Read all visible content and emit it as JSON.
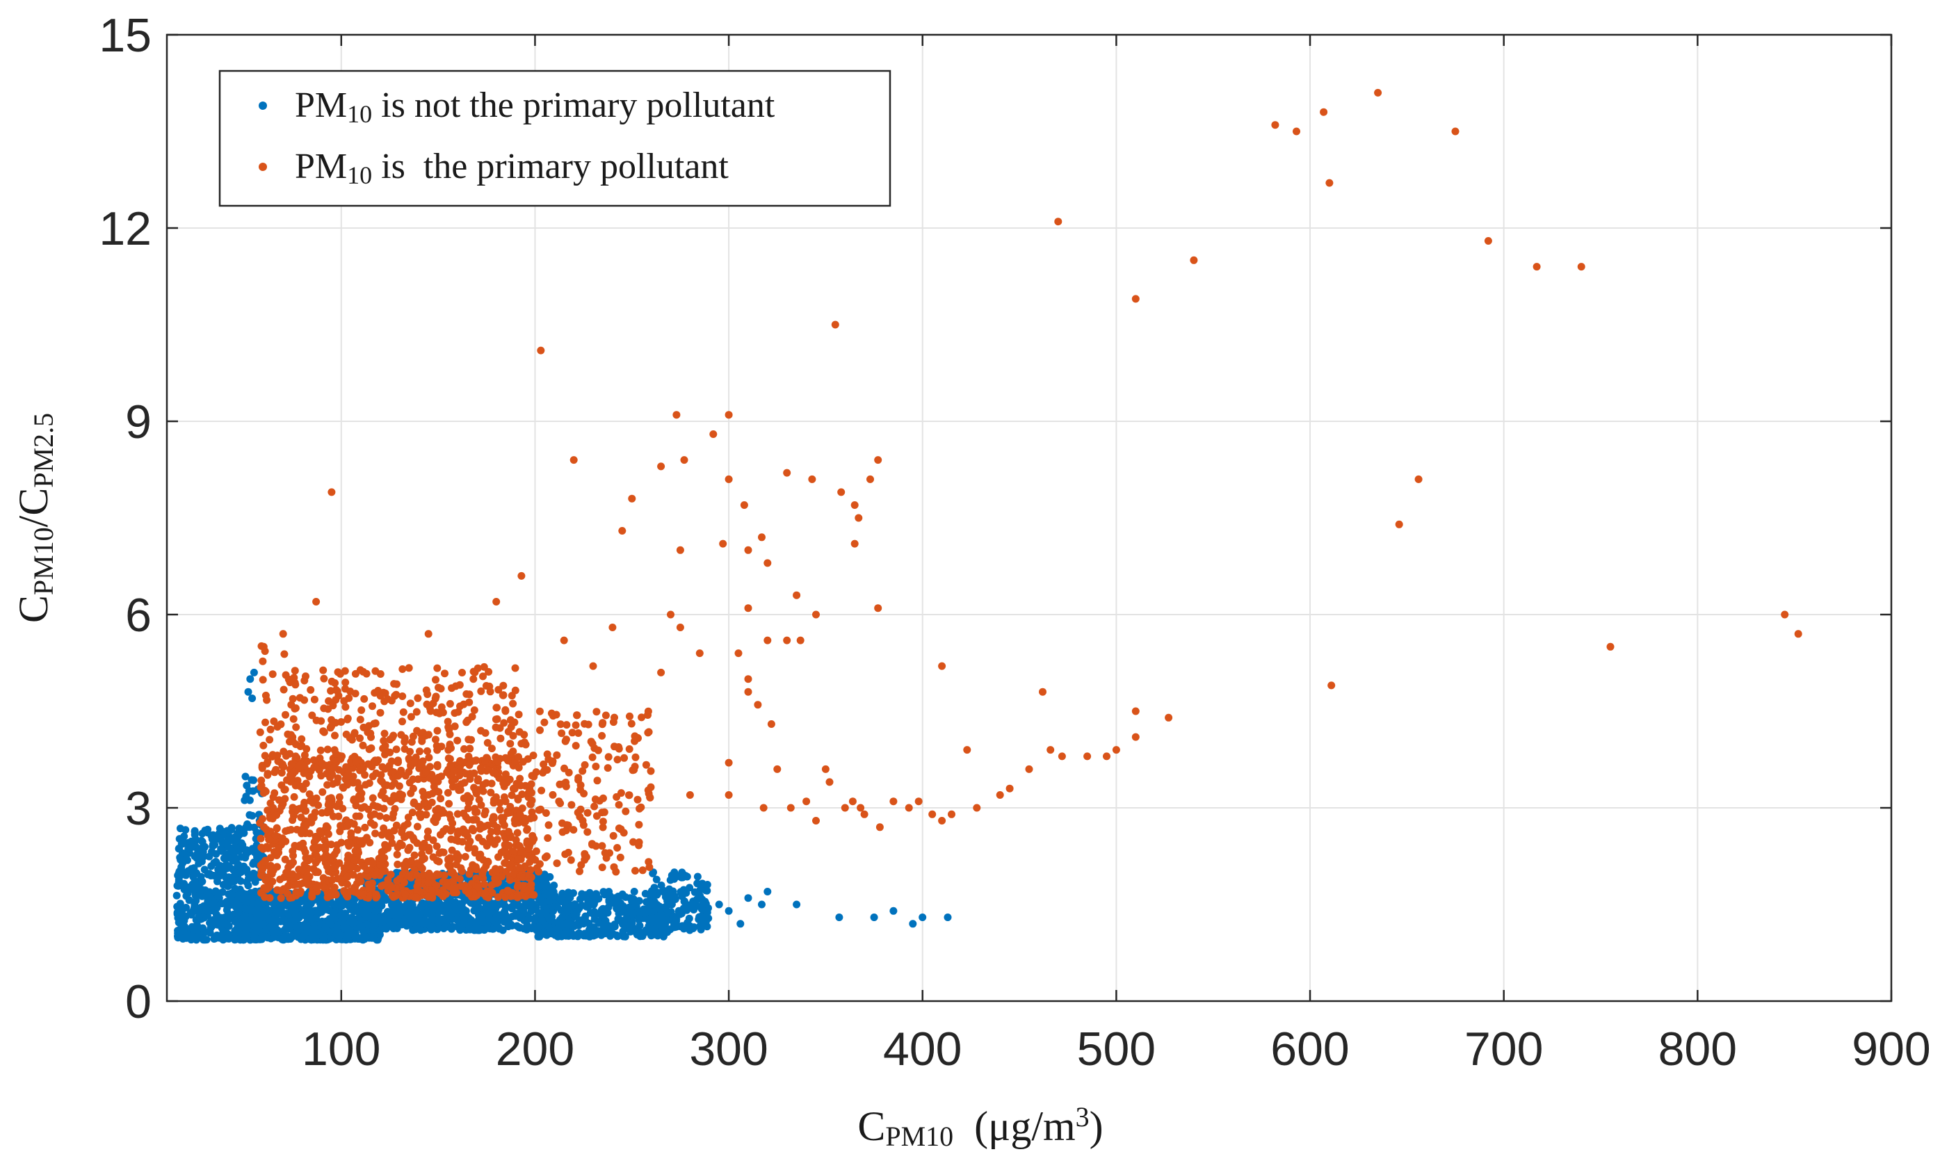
{
  "chart_data": {
    "type": "scatter",
    "title": "",
    "xlabel": {
      "main": "C",
      "sub": "PM10",
      "rest": "  (μg/m",
      "sup": "3",
      "end": ")"
    },
    "ylabel": {
      "p1": "C",
      "s1": "PM10",
      "mid": "/C",
      "s2": "PM2.5"
    },
    "xlim": [
      10,
      900
    ],
    "ylim": [
      0,
      15
    ],
    "xticks": [
      100,
      200,
      300,
      400,
      500,
      600,
      700,
      800,
      900
    ],
    "yticks": [
      0,
      3,
      6,
      9,
      12,
      15
    ],
    "grid": true,
    "legend_position": "top-left",
    "series": [
      {
        "name": "PM10 is not the primary pollutant",
        "legend": {
          "a": "PM",
          "sub": "10",
          "b": " is not the primary pollutant"
        },
        "color": "#0072BD",
        "clusters": [
          {
            "x": [
              15,
              60
            ],
            "y": [
              0.95,
              2.7
            ],
            "n": 520
          },
          {
            "x": [
              45,
              120
            ],
            "y": [
              0.95,
              1.7
            ],
            "n": 700
          },
          {
            "x": [
              110,
              210
            ],
            "y": [
              1.1,
              2.0
            ],
            "n": 800
          },
          {
            "x": [
              200,
              270
            ],
            "y": [
              1.0,
              1.7
            ],
            "n": 380
          },
          {
            "x": [
              260,
              290
            ],
            "y": [
              1.1,
              2.0
            ],
            "n": 120
          },
          {
            "x": [
              50,
              60
            ],
            "y": [
              2.7,
              3.5
            ],
            "n": 18
          }
        ],
        "points": [
          [
            52,
            4.8
          ],
          [
            53,
            5.0
          ],
          [
            55,
            5.1
          ],
          [
            54,
            4.7
          ],
          [
            300,
            1.4
          ],
          [
            310,
            1.6
          ],
          [
            320,
            1.7
          ],
          [
            335,
            1.5
          ],
          [
            357,
            1.3
          ],
          [
            375,
            1.3
          ],
          [
            385,
            1.4
          ],
          [
            395,
            1.2
          ],
          [
            400,
            1.3
          ],
          [
            413,
            1.3
          ],
          [
            306,
            1.2
          ],
          [
            317,
            1.5
          ],
          [
            288,
            1.3
          ],
          [
            295,
            1.5
          ]
        ]
      },
      {
        "name": "PM10 is the primary pollutant",
        "legend": {
          "a": "PM",
          "sub": "10",
          "b": " is  the primary pollutant"
        },
        "color": "#D95319",
        "clusters": [
          {
            "x": [
              58,
              200
            ],
            "y": [
              1.6,
              3.8
            ],
            "n": 1100
          },
          {
            "x": [
              70,
              190
            ],
            "y": [
              3.5,
              5.2
            ],
            "n": 300
          },
          {
            "x": [
              190,
              260
            ],
            "y": [
              2.0,
              4.5
            ],
            "n": 200
          },
          {
            "x": [
              58,
              80
            ],
            "y": [
              3.8,
              5.6
            ],
            "n": 30
          }
        ],
        "points": [
          [
            95,
            7.9
          ],
          [
            87,
            6.2
          ],
          [
            70,
            5.7
          ],
          [
            60,
            5.5
          ],
          [
            145,
            5.7
          ],
          [
            180,
            6.2
          ],
          [
            193,
            6.6
          ],
          [
            203,
            10.1
          ],
          [
            220,
            8.4
          ],
          [
            245,
            7.3
          ],
          [
            250,
            7.8
          ],
          [
            265,
            8.3
          ],
          [
            273,
            9.1
          ],
          [
            277,
            8.4
          ],
          [
            275,
            7.0
          ],
          [
            270,
            6.0
          ],
          [
            265,
            5.1
          ],
          [
            275,
            5.8
          ],
          [
            292,
            8.8
          ],
          [
            300,
            9.1
          ],
          [
            300,
            8.1
          ],
          [
            297,
            7.1
          ],
          [
            308,
            7.7
          ],
          [
            310,
            7.0
          ],
          [
            317,
            7.2
          ],
          [
            320,
            6.8
          ],
          [
            330,
            8.2
          ],
          [
            343,
            8.1
          ],
          [
            335,
            6.3
          ],
          [
            320,
            5.6
          ],
          [
            330,
            5.6
          ],
          [
            337,
            5.6
          ],
          [
            355,
            10.5
          ],
          [
            358,
            7.9
          ],
          [
            365,
            7.7
          ],
          [
            367,
            7.5
          ],
          [
            373,
            8.1
          ],
          [
            377,
            8.4
          ],
          [
            365,
            7.1
          ],
          [
            377,
            6.1
          ],
          [
            345,
            6.0
          ],
          [
            285,
            5.4
          ],
          [
            305,
            5.4
          ],
          [
            310,
            6.1
          ],
          [
            315,
            4.6
          ],
          [
            322,
            4.3
          ],
          [
            310,
            4.8
          ],
          [
            300,
            3.7
          ],
          [
            325,
            3.6
          ],
          [
            318,
            3.0
          ],
          [
            300,
            3.2
          ],
          [
            280,
            3.2
          ],
          [
            310,
            5.0
          ],
          [
            332,
            3.0
          ],
          [
            340,
            3.1
          ],
          [
            352,
            3.4
          ],
          [
            350,
            3.6
          ],
          [
            345,
            2.8
          ],
          [
            360,
            3.0
          ],
          [
            364,
            3.1
          ],
          [
            370,
            2.9
          ],
          [
            368,
            3.0
          ],
          [
            378,
            2.7
          ],
          [
            385,
            3.1
          ],
          [
            393,
            3.0
          ],
          [
            398,
            3.1
          ],
          [
            405,
            2.9
          ],
          [
            410,
            2.8
          ],
          [
            415,
            2.9
          ],
          [
            410,
            5.2
          ],
          [
            423,
            3.9
          ],
          [
            428,
            3.0
          ],
          [
            440,
            3.2
          ],
          [
            445,
            3.3
          ],
          [
            455,
            3.6
          ],
          [
            462,
            4.8
          ],
          [
            466,
            3.9
          ],
          [
            472,
            3.8
          ],
          [
            485,
            3.8
          ],
          [
            495,
            3.8
          ],
          [
            500,
            3.9
          ],
          [
            510,
            4.5
          ],
          [
            510,
            4.1
          ],
          [
            527,
            4.4
          ],
          [
            470,
            12.1
          ],
          [
            510,
            10.9
          ],
          [
            540,
            11.5
          ],
          [
            582,
            13.6
          ],
          [
            593,
            13.5
          ],
          [
            607,
            13.8
          ],
          [
            610,
            12.7
          ],
          [
            635,
            14.1
          ],
          [
            675,
            13.5
          ],
          [
            692,
            11.8
          ],
          [
            717,
            11.4
          ],
          [
            740,
            11.4
          ],
          [
            646,
            7.4
          ],
          [
            656,
            8.1
          ],
          [
            611,
            4.9
          ],
          [
            755,
            5.5
          ],
          [
            845,
            6.0
          ],
          [
            852,
            5.7
          ],
          [
            240,
            5.8
          ],
          [
            230,
            5.2
          ],
          [
            215,
            5.6
          ]
        ]
      }
    ]
  }
}
